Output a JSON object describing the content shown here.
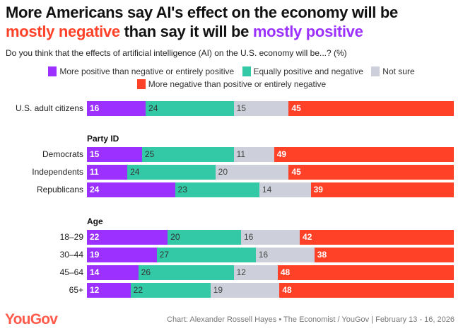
{
  "title": {
    "part1": "More Americans say AI's effect on the economy will be",
    "neg": "mostly negative",
    "mid": " than say it will be ",
    "pos": "mostly positive"
  },
  "subtitle": "Do you think that the effects of artificial intelligence (AI) on the U.S. economy will be...? (%)",
  "footer": {
    "logo": "YouGov",
    "source": "Chart: Alexander Rossell Hayes • The Economist / YouGov | February 13 - 16, 2026"
  },
  "chart_data": {
    "type": "bar",
    "stacked": true,
    "orientation": "horizontal",
    "series": [
      {
        "name": "More positive than negative or entirely positive",
        "color": "#9b30ff",
        "text_color": "#ffffff"
      },
      {
        "name": "Equally positive and negative",
        "color": "#33c9a7",
        "text_color": "#333333"
      },
      {
        "name": "Not sure",
        "color": "#cdd0da",
        "text_color": "#444444"
      },
      {
        "name": "More negative than positive or entirely negative",
        "color": "#ff4128",
        "text_color": "#ffffff"
      }
    ],
    "groups": [
      {
        "name": "",
        "rows": [
          {
            "label": "U.S. adult citizens",
            "values": [
              16,
              24,
              15,
              45
            ]
          }
        ]
      },
      {
        "name": "Party ID",
        "rows": [
          {
            "label": "Democrats",
            "values": [
              15,
              25,
              11,
              49
            ]
          },
          {
            "label": "Independents",
            "values": [
              11,
              24,
              20,
              45
            ]
          },
          {
            "label": "Republicans",
            "values": [
              24,
              23,
              14,
              39
            ]
          }
        ]
      },
      {
        "name": "Age",
        "rows": [
          {
            "label": "18–29",
            "values": [
              22,
              20,
              16,
              42
            ]
          },
          {
            "label": "30–44",
            "values": [
              19,
              27,
              16,
              38
            ]
          },
          {
            "label": "45–64",
            "values": [
              14,
              26,
              12,
              48
            ]
          },
          {
            "label": "65+",
            "values": [
              12,
              22,
              19,
              48
            ]
          }
        ]
      }
    ]
  }
}
